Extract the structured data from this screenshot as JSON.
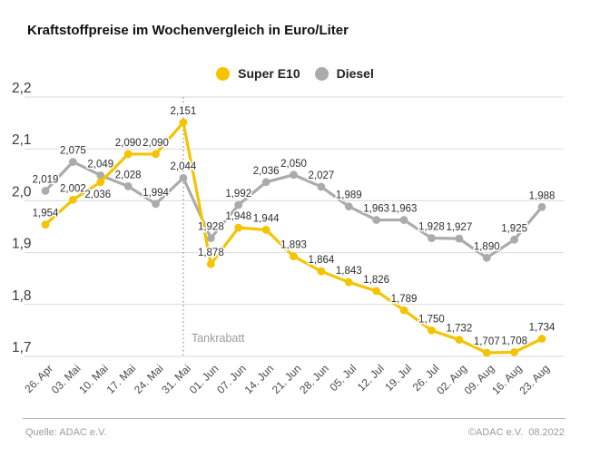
{
  "title": "Kraftstoffpreise im Wochenvergleich in Euro/Liter",
  "chart_data": {
    "type": "line",
    "x": [
      "26. Apr",
      "03. Mai",
      "10. Mai",
      "17. Mai",
      "24. Mai",
      "31. Mai",
      "01. Jun",
      "07. Jun",
      "14. Jun",
      "21. Jun",
      "28. Jun",
      "05. Jul",
      "12. Jul",
      "19. Jul",
      "26. Jul",
      "02. Aug",
      "09. Aug",
      "16. Aug",
      "23. Aug"
    ],
    "series": [
      {
        "name": "Super E10",
        "color": "#F5C400",
        "values": [
          1.954,
          2.002,
          2.036,
          2.09,
          2.09,
          2.151,
          1.878,
          1.948,
          1.944,
          1.893,
          1.864,
          1.843,
          1.826,
          1.789,
          1.75,
          1.732,
          1.707,
          1.708,
          1.734
        ]
      },
      {
        "name": "Diesel",
        "color": "#ABABAB",
        "values": [
          2.019,
          2.075,
          2.049,
          2.028,
          1.994,
          2.044,
          1.928,
          1.992,
          2.036,
          2.05,
          2.027,
          1.989,
          1.963,
          1.963,
          1.928,
          1.927,
          1.89,
          1.925,
          1.988
        ]
      }
    ],
    "ylabel": "Euro/Liter",
    "ylim": [
      1.7,
      2.2
    ],
    "yticks": [
      2.2,
      2.1,
      2.0,
      1.9,
      1.8,
      1.7
    ],
    "decimal_separator": ",",
    "grid": true,
    "legend_position": "top-center",
    "annotation": {
      "label": "Tankrabatt",
      "x_index": 5,
      "style": "dotted-vertical-line"
    }
  },
  "footer": {
    "source": "Quelle: ADAC e.V.",
    "copyright": "©ADAC e.V.  08.2022"
  }
}
